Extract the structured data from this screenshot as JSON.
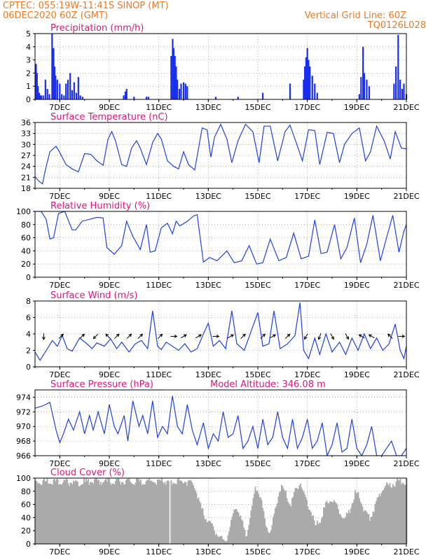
{
  "header": {
    "station_line": "CPTEC:  055:19W-11:41S  SINOP (MT)",
    "date_line": "06DEC2020 60Z (GMT)",
    "grid_note": "Vertical Grid Line: 60Z",
    "code": "TQ0126L028"
  },
  "colors": {
    "header_text": "#f07820",
    "panel_title": "#e0157a",
    "series_line": "#2040e0",
    "bars": "#1a2ef0",
    "cloud_fill": "#aaaaaa",
    "wind_arrow": "#000000",
    "grid": "#999999"
  },
  "x_axis": {
    "tick_labels": [
      "7DEC",
      "9DEC",
      "11DEC",
      "13DEC",
      "15DEC",
      "17DEC",
      "19DEC",
      "21DEC"
    ],
    "tick_values": [
      7,
      9,
      11,
      13,
      15,
      17,
      19,
      21
    ],
    "range": [
      6.0,
      21.0
    ]
  },
  "chart_data": [
    {
      "type": "bar",
      "id": "precip",
      "title": "Precipitation (mm/h)",
      "ylim": [
        0,
        5
      ],
      "yticks": [
        0,
        1,
        2,
        3,
        4,
        5
      ],
      "grid": true,
      "series": [
        {
          "x": [
            6.04,
            6.08,
            6.12,
            6.17,
            6.21,
            6.25,
            6.33,
            6.42,
            6.5,
            6.58,
            6.69,
            6.75,
            6.79,
            6.83,
            6.9,
            7.0,
            7.08,
            7.17,
            7.25,
            7.33,
            7.42,
            7.5,
            7.58,
            7.67,
            7.75,
            7.83,
            7.92,
            9.58,
            9.65,
            9.7,
            10.0,
            10.5,
            10.58,
            11.5,
            11.56,
            11.6,
            11.65,
            11.7,
            11.75,
            11.83,
            11.9,
            12.0,
            12.08,
            12.15,
            13.3,
            14.2,
            15.2,
            16.3,
            16.85,
            16.9,
            16.95,
            17.0,
            17.05,
            17.1,
            17.2,
            17.3,
            17.4,
            19.1,
            19.17,
            19.25,
            19.3,
            19.4,
            19.5,
            20.5,
            20.58,
            20.67,
            20.75,
            20.83,
            20.9,
            21.0
          ],
          "values": [
            2.7,
            2.0,
            1.0,
            0.5,
            0.3,
            0.3,
            0.3,
            1.5,
            0.8,
            0.4,
            5.0,
            3.9,
            2.5,
            1.8,
            1.5,
            1.2,
            0.4,
            0.3,
            1.2,
            1.5,
            2.0,
            0.7,
            1.3,
            0.5,
            1.7,
            0.3,
            0.2,
            0.3,
            0.6,
            0.8,
            0.2,
            0.2,
            0.2,
            3.3,
            4.6,
            3.9,
            3.3,
            2.5,
            1.5,
            0.8,
            1.2,
            1.3,
            1.2,
            1.0,
            0.2,
            0.2,
            0.5,
            1.2,
            1.5,
            2.5,
            3.2,
            3.9,
            3.0,
            2.5,
            1.8,
            1.2,
            0.5,
            0.4,
            1.7,
            4.0,
            2.0,
            1.5,
            1.0,
            1.2,
            2.5,
            4.9,
            1.5,
            0.8,
            1.2,
            0.4
          ]
        }
      ]
    },
    {
      "type": "line",
      "id": "temp",
      "title": "Surface Temperature (nC)",
      "ylim": [
        18,
        36
      ],
      "yticks": [
        18,
        21,
        24,
        27,
        30,
        33,
        36
      ],
      "grid": true,
      "series": [
        {
          "x": [
            6.0,
            6.15,
            6.3,
            6.45,
            6.6,
            6.85,
            7.0,
            7.25,
            7.5,
            7.75,
            8.0,
            8.25,
            8.5,
            8.75,
            8.95,
            9.1,
            9.25,
            9.5,
            9.7,
            9.9,
            10.1,
            10.25,
            10.5,
            10.75,
            10.95,
            11.1,
            11.35,
            11.6,
            11.8,
            12.0,
            12.2,
            12.45,
            12.75,
            12.95,
            13.1,
            13.25,
            13.5,
            13.75,
            13.95,
            14.2,
            14.5,
            14.8,
            15.05,
            15.25,
            15.5,
            15.8,
            16.1,
            16.3,
            16.55,
            16.8,
            17.05,
            17.3,
            17.5,
            17.8,
            18.05,
            18.3,
            18.5,
            18.8,
            19.1,
            19.35,
            19.55,
            19.8,
            20.1,
            20.35,
            20.55,
            20.8,
            21.0
          ],
          "values": [
            21.2,
            20.0,
            19.2,
            24.0,
            28.0,
            29.5,
            27.8,
            24.5,
            23.3,
            22.5,
            27.5,
            27.3,
            25.5,
            24.3,
            31.5,
            33.5,
            31.0,
            24.5,
            24.0,
            29.0,
            31.0,
            29.0,
            24.5,
            30.5,
            33.0,
            31.5,
            25.5,
            24.0,
            23.3,
            28.0,
            24.5,
            23.0,
            34.5,
            34.0,
            26.5,
            32.0,
            35.5,
            31.5,
            25.0,
            31.0,
            35.5,
            33.5,
            25.0,
            35.0,
            35.0,
            25.5,
            33.5,
            35.3,
            30.5,
            25.5,
            34.0,
            33.8,
            24.5,
            33.3,
            33.0,
            25.0,
            30.0,
            33.0,
            34.5,
            25.5,
            28.0,
            35.0,
            31.0,
            26.0,
            33.5,
            29.0,
            28.8
          ]
        }
      ]
    },
    {
      "type": "line",
      "id": "rh",
      "title": "Relative Humidity (%)",
      "ylim": [
        0,
        100
      ],
      "yticks": [
        0,
        20,
        40,
        60,
        80,
        100
      ],
      "grid": true,
      "series": [
        {
          "x": [
            6.0,
            6.25,
            6.45,
            6.6,
            6.75,
            6.95,
            7.2,
            7.5,
            7.65,
            7.9,
            8.2,
            8.5,
            8.75,
            8.9,
            9.2,
            9.5,
            9.7,
            9.95,
            10.25,
            10.5,
            10.65,
            10.85,
            11.1,
            11.35,
            11.55,
            11.7,
            11.85,
            12.15,
            12.4,
            12.55,
            12.8,
            13.05,
            13.35,
            13.75,
            14.05,
            14.35,
            14.65,
            14.95,
            15.2,
            15.5,
            15.85,
            16.15,
            16.45,
            16.75,
            17.05,
            17.3,
            17.55,
            17.8,
            18.1,
            18.35,
            18.6,
            18.9,
            19.15,
            19.4,
            19.65,
            19.95,
            20.2,
            20.45,
            20.7,
            20.9,
            21.0
          ],
          "values": [
            100,
            100,
            88,
            58,
            60,
            97,
            100,
            72,
            72,
            85,
            88,
            91,
            90,
            45,
            35,
            48,
            85,
            62,
            42,
            80,
            38,
            40,
            75,
            82,
            66,
            85,
            78,
            85,
            93,
            95,
            23,
            30,
            25,
            40,
            22,
            25,
            48,
            20,
            22,
            58,
            25,
            30,
            67,
            28,
            32,
            87,
            36,
            38,
            80,
            28,
            45,
            90,
            22,
            50,
            94,
            25,
            60,
            94,
            38,
            70,
            80
          ]
        }
      ]
    },
    {
      "type": "line",
      "id": "wind",
      "title": "Surface Wind (m/s)",
      "ylim": [
        0,
        8
      ],
      "yticks": [
        0,
        2,
        4,
        6,
        8
      ],
      "grid": true,
      "series": [
        {
          "x": [
            6.0,
            6.2,
            6.5,
            6.7,
            6.9,
            7.1,
            7.3,
            7.5,
            7.8,
            8.1,
            8.3,
            8.5,
            8.8,
            9.05,
            9.3,
            9.5,
            9.8,
            10.05,
            10.3,
            10.55,
            10.75,
            10.95,
            11.1,
            11.3,
            11.55,
            11.8,
            12.05,
            12.3,
            12.55,
            12.8,
            13.0,
            13.2,
            13.45,
            13.7,
            13.95,
            14.15,
            14.45,
            14.75,
            15.0,
            15.2,
            15.45,
            15.65,
            15.9,
            16.2,
            16.5,
            16.7,
            16.85,
            17.05,
            17.3,
            17.5,
            17.75,
            18.0,
            18.3,
            18.55,
            18.8,
            19.05,
            19.3,
            19.55,
            19.8,
            20.05,
            20.3,
            20.55,
            20.75,
            20.9,
            21.0
          ],
          "values": [
            1.8,
            0.8,
            2.2,
            3.2,
            2.5,
            3.8,
            2.2,
            1.9,
            3.5,
            2.8,
            2.2,
            2.9,
            2.5,
            3.4,
            2.2,
            3.0,
            1.8,
            2.8,
            3.2,
            2.2,
            6.8,
            2.5,
            2.1,
            3.0,
            2.5,
            2.0,
            2.8,
            1.8,
            2.2,
            4.0,
            5.3,
            2.5,
            3.2,
            2.2,
            6.8,
            2.8,
            2.0,
            4.5,
            6.6,
            2.5,
            2.8,
            6.8,
            2.2,
            2.8,
            3.8,
            7.8,
            2.0,
            1.0,
            3.5,
            1.5,
            4.0,
            1.8,
            3.0,
            1.5,
            3.5,
            2.0,
            4.0,
            2.2,
            3.5,
            2.0,
            2.8,
            5.2,
            2.0,
            1.0,
            2.5
          ]
        }
      ],
      "wind_vectors": [
        {
          "x": 6.35,
          "dir_deg": 180
        },
        {
          "x": 7.05,
          "dir_deg": 45
        },
        {
          "x": 7.9,
          "dir_deg": 45
        },
        {
          "x": 8.45,
          "dir_deg": 225
        },
        {
          "x": 8.95,
          "dir_deg": 315
        },
        {
          "x": 9.3,
          "dir_deg": 45
        },
        {
          "x": 9.8,
          "dir_deg": 45
        },
        {
          "x": 10.25,
          "dir_deg": 45
        },
        {
          "x": 11.05,
          "dir_deg": 45
        },
        {
          "x": 11.6,
          "dir_deg": 90
        },
        {
          "x": 12.0,
          "dir_deg": 60
        },
        {
          "x": 12.6,
          "dir_deg": 60
        },
        {
          "x": 13.3,
          "dir_deg": 90
        },
        {
          "x": 13.9,
          "dir_deg": 60
        },
        {
          "x": 14.4,
          "dir_deg": 45
        },
        {
          "x": 15.2,
          "dir_deg": 45
        },
        {
          "x": 15.6,
          "dir_deg": 60
        },
        {
          "x": 16.2,
          "dir_deg": 45
        },
        {
          "x": 16.95,
          "dir_deg": 210
        },
        {
          "x": 17.5,
          "dir_deg": 200
        },
        {
          "x": 18.0,
          "dir_deg": 150
        },
        {
          "x": 18.6,
          "dir_deg": 150
        },
        {
          "x": 19.2,
          "dir_deg": 300
        },
        {
          "x": 19.6,
          "dir_deg": 300
        },
        {
          "x": 20.35,
          "dir_deg": 315
        },
        {
          "x": 20.8,
          "dir_deg": 90
        }
      ]
    },
    {
      "type": "line",
      "id": "pressure",
      "title": "Surface Pressure (hPa)",
      "extra_label": "Model Altitude: 346.08 m",
      "ylim": [
        966,
        975
      ],
      "yticks": [
        966,
        968,
        970,
        972,
        974
      ],
      "grid": true,
      "series": [
        {
          "x": [
            6.0,
            6.3,
            6.6,
            6.85,
            7.0,
            7.15,
            7.35,
            7.55,
            7.8,
            8.0,
            8.2,
            8.35,
            8.55,
            8.8,
            9.0,
            9.2,
            9.35,
            9.6,
            9.75,
            9.95,
            10.2,
            10.35,
            10.55,
            10.75,
            10.95,
            11.15,
            11.35,
            11.55,
            11.75,
            11.95,
            12.15,
            12.35,
            12.55,
            12.8,
            13.0,
            13.2,
            13.4,
            13.6,
            13.8,
            14.0,
            14.2,
            14.4,
            14.6,
            14.8,
            15.0,
            15.2,
            15.4,
            15.6,
            15.8,
            16.0,
            16.2,
            16.4,
            16.6,
            16.8,
            17.0,
            17.2,
            17.4,
            17.6,
            17.8,
            18.0,
            18.2,
            18.4,
            18.6,
            18.8,
            19.0,
            19.2,
            19.4,
            19.6,
            19.8,
            20.0,
            20.2,
            20.4,
            20.6,
            20.8,
            21.0
          ],
          "values": [
            972.5,
            972.8,
            973.3,
            969.5,
            967.8,
            969.0,
            971.0,
            969.5,
            972.0,
            969.0,
            971.5,
            969.5,
            972.0,
            969.0,
            973.0,
            970.0,
            969.0,
            971.5,
            968.0,
            973.5,
            970.0,
            971.5,
            969.0,
            973.5,
            968.5,
            970.0,
            969.0,
            974.2,
            970.0,
            969.0,
            973.0,
            969.5,
            967.5,
            970.5,
            967.0,
            969.0,
            968.0,
            972.0,
            968.5,
            969.0,
            971.5,
            967.0,
            968.0,
            970.0,
            967.0,
            971.0,
            967.5,
            968.5,
            972.0,
            968.5,
            967.0,
            971.0,
            967.0,
            968.5,
            971.0,
            967.0,
            968.0,
            970.5,
            966.0,
            967.5,
            970.5,
            966.5,
            967.0,
            971.0,
            967.0,
            965.5,
            967.5,
            970.0,
            966.0,
            965.0,
            967.0,
            968.0,
            966.0,
            965.5,
            967.0
          ]
        }
      ]
    },
    {
      "type": "area",
      "id": "cloud",
      "title": "Cloud Cover (%)",
      "ylim": [
        0,
        100
      ],
      "yticks": [
        0,
        20,
        40,
        60,
        80,
        100
      ],
      "grid": true,
      "series": [
        {
          "x": [
            6.0,
            6.5,
            7.0,
            7.5,
            8.0,
            8.5,
            9.0,
            9.5,
            10.0,
            10.5,
            11.0,
            11.5,
            12.0,
            12.4,
            12.7,
            12.9,
            13.1,
            13.3,
            13.5,
            13.7,
            13.9,
            14.1,
            14.3,
            14.5,
            14.7,
            14.9,
            15.1,
            15.3,
            15.5,
            15.7,
            15.9,
            16.1,
            16.3,
            16.5,
            16.7,
            16.9,
            17.1,
            17.3,
            17.5,
            17.7,
            17.9,
            18.1,
            18.3,
            18.5,
            18.7,
            18.9,
            19.1,
            19.3,
            19.5,
            19.7,
            19.9,
            20.1,
            20.3,
            20.5,
            20.7,
            21.0
          ],
          "values": [
            97,
            98,
            97,
            96,
            97,
            98,
            97,
            98,
            97,
            98,
            98,
            97,
            98,
            95,
            55,
            40,
            30,
            20,
            10,
            8,
            35,
            60,
            40,
            15,
            50,
            90,
            70,
            30,
            20,
            60,
            90,
            80,
            60,
            85,
            95,
            70,
            55,
            30,
            40,
            60,
            70,
            65,
            50,
            40,
            55,
            80,
            75,
            50,
            40,
            60,
            80,
            90,
            92,
            95,
            97,
            98
          ]
        }
      ]
    }
  ]
}
